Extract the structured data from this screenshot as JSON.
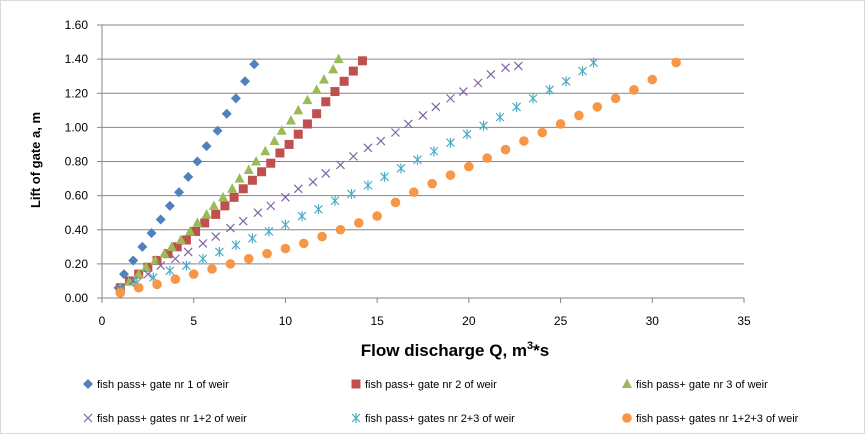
{
  "chart_data": {
    "type": "scatter",
    "title": "",
    "xlabel": "Flow discharge Q, m",
    "xlabel_sup": "3",
    "xlabel_suffix": "*s",
    "ylabel": "Lift of gate a, m",
    "xlim": [
      0,
      35
    ],
    "ylim": [
      0,
      1.6
    ],
    "x_ticks": [
      "0",
      "5",
      "10",
      "15",
      "20",
      "25",
      "30",
      "35"
    ],
    "y_ticks": [
      "0.00",
      "0.20",
      "0.40",
      "0.60",
      "0.80",
      "1.00",
      "1.20",
      "1.40",
      "1.60"
    ],
    "grid": "horizontal",
    "legend_position": "bottom",
    "series": [
      {
        "name": "fish pass+ gate nr 1 of weir",
        "marker": "diamond",
        "color": "#4f81bd",
        "x": [
          0.9,
          1.2,
          1.7,
          2.2,
          2.7,
          3.2,
          3.7,
          4.2,
          4.7,
          5.2,
          5.7,
          6.3,
          6.8,
          7.3,
          7.8,
          8.3
        ],
        "y": [
          0.06,
          0.14,
          0.22,
          0.3,
          0.38,
          0.46,
          0.54,
          0.62,
          0.71,
          0.8,
          0.89,
          0.98,
          1.08,
          1.17,
          1.27,
          1.37
        ]
      },
      {
        "name": "fish pass+ gate nr 2 of weir",
        "marker": "square",
        "color": "#c0504d",
        "x": [
          1.0,
          1.5,
          2.0,
          2.5,
          3.0,
          3.6,
          4.1,
          4.6,
          5.1,
          5.6,
          6.2,
          6.7,
          7.2,
          7.7,
          8.2,
          8.7,
          9.2,
          9.7,
          10.2,
          10.7,
          11.2,
          11.7,
          12.2,
          12.7,
          13.2,
          13.7,
          14.2
        ],
        "y": [
          0.06,
          0.1,
          0.14,
          0.18,
          0.22,
          0.26,
          0.3,
          0.34,
          0.39,
          0.44,
          0.49,
          0.54,
          0.59,
          0.64,
          0.69,
          0.74,
          0.79,
          0.85,
          0.9,
          0.96,
          1.02,
          1.08,
          1.15,
          1.21,
          1.27,
          1.33,
          1.39
        ]
      },
      {
        "name": "fish pass+ gate nr 3 of weir",
        "marker": "triangle",
        "color": "#9bbb59",
        "x": [
          1.0,
          1.5,
          2.0,
          2.4,
          2.9,
          3.4,
          3.8,
          4.3,
          4.8,
          5.2,
          5.7,
          6.1,
          6.6,
          7.1,
          7.5,
          8.0,
          8.4,
          8.9,
          9.4,
          9.8,
          10.3,
          10.7,
          11.2,
          11.7,
          12.1,
          12.6,
          12.9
        ],
        "y": [
          0.06,
          0.1,
          0.14,
          0.18,
          0.22,
          0.26,
          0.3,
          0.34,
          0.39,
          0.44,
          0.49,
          0.54,
          0.59,
          0.64,
          0.7,
          0.75,
          0.8,
          0.86,
          0.92,
          0.98,
          1.04,
          1.1,
          1.16,
          1.22,
          1.28,
          1.34,
          1.4
        ]
      },
      {
        "name": "fish pass+ gates nr 1+2 of weir",
        "marker": "x",
        "color": "#8064a2",
        "x": [
          1.0,
          1.7,
          2.5,
          3.2,
          4.0,
          4.7,
          5.5,
          6.2,
          7.0,
          7.7,
          8.5,
          9.2,
          10.0,
          10.7,
          11.5,
          12.2,
          13.0,
          13.7,
          14.5,
          15.2,
          16.0,
          16.7,
          17.5,
          18.2,
          19.0,
          19.7,
          20.5,
          21.2,
          22.0,
          22.7
        ],
        "y": [
          0.06,
          0.1,
          0.14,
          0.19,
          0.23,
          0.27,
          0.32,
          0.36,
          0.41,
          0.45,
          0.5,
          0.54,
          0.59,
          0.64,
          0.68,
          0.73,
          0.78,
          0.83,
          0.88,
          0.92,
          0.97,
          1.02,
          1.07,
          1.12,
          1.17,
          1.21,
          1.26,
          1.31,
          1.35,
          1.36
        ]
      },
      {
        "name": "fish pass+ gates nr 2+3 of weir",
        "marker": "asterisk",
        "color": "#4bacc6",
        "x": [
          1.0,
          1.9,
          2.8,
          3.7,
          4.6,
          5.5,
          6.4,
          7.3,
          8.2,
          9.1,
          10.0,
          10.9,
          11.8,
          12.7,
          13.6,
          14.5,
          15.4,
          16.3,
          17.2,
          18.1,
          19.0,
          19.9,
          20.8,
          21.7,
          22.6,
          23.5,
          24.4,
          25.3,
          26.2,
          26.8
        ],
        "y": [
          0.05,
          0.09,
          0.12,
          0.16,
          0.19,
          0.23,
          0.27,
          0.31,
          0.35,
          0.39,
          0.43,
          0.48,
          0.52,
          0.57,
          0.61,
          0.66,
          0.71,
          0.76,
          0.81,
          0.86,
          0.91,
          0.96,
          1.01,
          1.06,
          1.12,
          1.17,
          1.22,
          1.27,
          1.33,
          1.38
        ]
      },
      {
        "name": "fish pass+ gates nr 1+2+3 of weir",
        "marker": "circle",
        "color": "#f79646",
        "x": [
          1.0,
          2.0,
          3.0,
          4.0,
          5.0,
          6.0,
          7.0,
          8.0,
          9.0,
          10.0,
          11.0,
          12.0,
          13.0,
          14.0,
          15.0,
          16.0,
          17.0,
          18.0,
          19.0,
          20.0,
          21.0,
          22.0,
          23.0,
          24.0,
          25.0,
          26.0,
          27.0,
          28.0,
          29.0,
          30.0,
          31.3
        ],
        "y": [
          0.03,
          0.06,
          0.08,
          0.11,
          0.14,
          0.17,
          0.2,
          0.23,
          0.26,
          0.29,
          0.32,
          0.36,
          0.4,
          0.44,
          0.48,
          0.56,
          0.62,
          0.67,
          0.72,
          0.77,
          0.82,
          0.87,
          0.92,
          0.97,
          1.02,
          1.07,
          1.12,
          1.17,
          1.22,
          1.28,
          1.38
        ]
      }
    ]
  }
}
